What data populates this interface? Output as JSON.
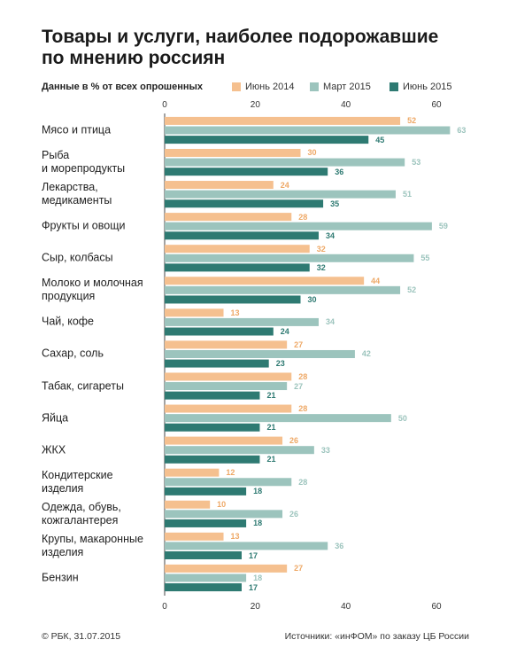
{
  "chart_data": {
    "type": "hbar",
    "title": "Товары и услуги, наиболее подорожавшие\nпо мнению россиян",
    "subtitle": "Данные в % от всех опрошенных",
    "copyright": "© РБК, 31.07.2015",
    "source": "Источники: «инФОМ» по заказу ЦБ России",
    "categories": [
      "Мясо и птица",
      "Рыба\nи морепродукты",
      "Лекарства,\nмедикаменты",
      "Фрукты и овощи",
      "Сыр, колбасы",
      "Молоко и молочная\nпродукция",
      "Чай, кофе",
      "Сахар, соль",
      "Табак, сигареты",
      "Яйца",
      "ЖКХ",
      "Кондитерские\nизделия",
      "Одежда, обувь,\nкожгалантерея",
      "Крупы, макаронные\nизделия",
      "Бензин"
    ],
    "series": [
      {
        "name": "Июнь 2014",
        "color": "#f5c08f",
        "values": [
          52,
          30,
          24,
          28,
          32,
          44,
          13,
          27,
          28,
          28,
          26,
          12,
          10,
          13,
          27
        ]
      },
      {
        "name": "Март 2015",
        "color": "#9cc4bd",
        "values": [
          63,
          53,
          51,
          59,
          55,
          52,
          34,
          42,
          27,
          50,
          33,
          28,
          26,
          36,
          18
        ]
      },
      {
        "name": "Июнь 2015",
        "color": "#2e7a72",
        "values": [
          45,
          36,
          35,
          34,
          32,
          30,
          24,
          23,
          21,
          21,
          21,
          18,
          18,
          17,
          17
        ]
      }
    ],
    "xlim": [
      0,
      65
    ],
    "xticks": [
      0,
      20,
      40,
      60
    ],
    "grid": false
  }
}
